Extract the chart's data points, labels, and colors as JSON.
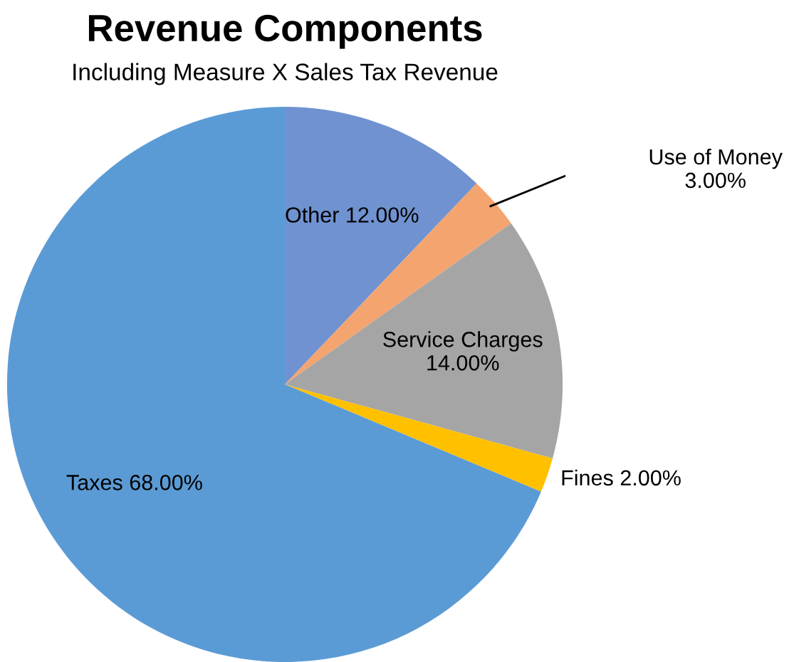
{
  "chart_data": {
    "type": "pie",
    "title": "Revenue Components",
    "subtitle": "Including Measure X Sales Tax Revenue",
    "categories": [
      "Other",
      "Use of Money",
      "Service Charges",
      "Fines",
      "Taxes"
    ],
    "values": [
      12,
      3,
      14,
      2,
      68
    ],
    "value_labels": [
      "12.00%",
      "3.00%",
      "14.00%",
      "2.00%",
      "68.00%"
    ],
    "colors": [
      "#7092d0",
      "#f4a46f",
      "#a5a5a5",
      "#ffc000",
      "#5b9bd5"
    ],
    "legend": false
  }
}
